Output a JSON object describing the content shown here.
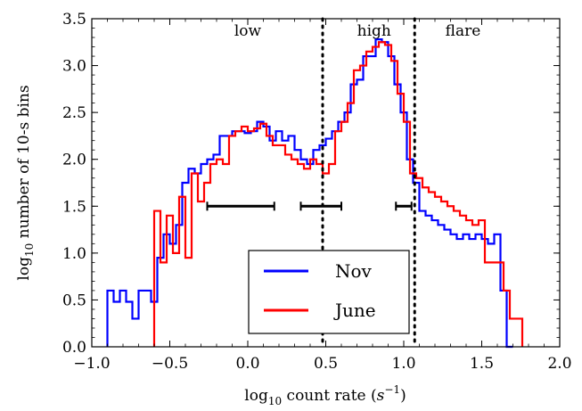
{
  "chart_data": {
    "type": "line",
    "step": true,
    "xlabel": "log10 count rate (s^-1)",
    "ylabel": "log10 number of 10-s bins",
    "xlim": [
      -1.0,
      2.0
    ],
    "ylim": [
      0.0,
      3.5
    ],
    "xticks": [
      "−1.0",
      "−0.5",
      "0.0",
      "0.5",
      "1.0",
      "1.5",
      "2.0"
    ],
    "yticks": [
      "0.0",
      "0.5",
      "1.0",
      "1.5",
      "2.0",
      "2.5",
      "3.0",
      "3.5"
    ],
    "grid": false,
    "legend": "bottom-center",
    "regions": [
      {
        "label": "low",
        "x": 0.0
      },
      {
        "label": "high",
        "x": 0.81
      },
      {
        "label": "flare",
        "x": 1.38
      }
    ],
    "boundaries": [
      0.48,
      1.07
    ],
    "error_bars": [
      {
        "x_low": -0.26,
        "x_high": 0.17,
        "y": 1.5
      },
      {
        "x_low": 0.34,
        "x_high": 0.6,
        "y": 1.5
      },
      {
        "x_low": 0.95,
        "x_high": 1.05,
        "y": 1.5
      }
    ],
    "series": [
      {
        "name": "Nov",
        "color": "#0000ff",
        "edges": [
          -0.9,
          -0.86,
          -0.82,
          -0.78,
          -0.74,
          -0.7,
          -0.66,
          -0.62,
          -0.58,
          -0.54,
          -0.5,
          -0.46,
          -0.42,
          -0.38,
          -0.34,
          -0.3,
          -0.26,
          -0.22,
          -0.18,
          -0.14,
          -0.1,
          -0.06,
          -0.02,
          0.02,
          0.06,
          0.1,
          0.14,
          0.18,
          0.22,
          0.26,
          0.3,
          0.34,
          0.38,
          0.42,
          0.46,
          0.5,
          0.54,
          0.58,
          0.62,
          0.66,
          0.7,
          0.74,
          0.78,
          0.82,
          0.86,
          0.9,
          0.94,
          0.98,
          1.02,
          1.06,
          1.1,
          1.14,
          1.18,
          1.22,
          1.26,
          1.3,
          1.34,
          1.38,
          1.42,
          1.46,
          1.5,
          1.54,
          1.58,
          1.62,
          1.66,
          1.7
        ],
        "values": [
          0.6,
          0.48,
          0.6,
          0.48,
          0.3,
          0.6,
          0.6,
          0.48,
          0.95,
          1.2,
          1.1,
          1.3,
          1.75,
          1.9,
          1.85,
          1.95,
          2.0,
          2.05,
          2.25,
          2.25,
          2.3,
          2.3,
          2.28,
          2.3,
          2.4,
          2.35,
          2.2,
          2.3,
          2.2,
          2.25,
          2.1,
          2.0,
          1.95,
          2.1,
          2.15,
          2.22,
          2.3,
          2.4,
          2.5,
          2.8,
          2.85,
          3.1,
          3.1,
          3.28,
          3.25,
          3.1,
          2.8,
          2.5,
          2.0,
          1.75,
          1.45,
          1.4,
          1.35,
          1.3,
          1.25,
          1.2,
          1.15,
          1.2,
          1.15,
          1.2,
          1.15,
          1.1,
          1.2,
          0.6,
          0.0
        ]
      },
      {
        "name": "June",
        "color": "#ff0000",
        "edges": [
          -0.6,
          -0.56,
          -0.52,
          -0.48,
          -0.44,
          -0.4,
          -0.36,
          -0.32,
          -0.28,
          -0.24,
          -0.2,
          -0.16,
          -0.12,
          -0.08,
          -0.04,
          0.0,
          0.04,
          0.08,
          0.12,
          0.16,
          0.2,
          0.24,
          0.28,
          0.32,
          0.36,
          0.4,
          0.44,
          0.48,
          0.52,
          0.56,
          0.6,
          0.64,
          0.68,
          0.72,
          0.76,
          0.8,
          0.84,
          0.88,
          0.92,
          0.96,
          1.0,
          1.04,
          1.08,
          1.12,
          1.16,
          1.2,
          1.24,
          1.28,
          1.32,
          1.36,
          1.4,
          1.44,
          1.48,
          1.52,
          1.56,
          1.6,
          1.64,
          1.68,
          1.72,
          1.76
        ],
        "values": [
          1.45,
          0.9,
          1.4,
          1.0,
          1.6,
          0.95,
          1.85,
          1.55,
          1.75,
          1.95,
          2.0,
          1.95,
          2.25,
          2.3,
          2.35,
          2.3,
          2.33,
          2.38,
          2.25,
          2.15,
          2.15,
          2.05,
          2.0,
          1.95,
          1.9,
          2.0,
          1.95,
          1.85,
          1.95,
          2.3,
          2.4,
          2.6,
          2.95,
          3.0,
          3.15,
          3.2,
          3.25,
          3.22,
          3.05,
          2.7,
          2.4,
          1.85,
          1.8,
          1.7,
          1.65,
          1.6,
          1.55,
          1.5,
          1.45,
          1.4,
          1.35,
          1.3,
          1.35,
          0.9,
          0.9,
          0.9,
          0.6,
          0.3,
          0.3
        ]
      }
    ]
  }
}
